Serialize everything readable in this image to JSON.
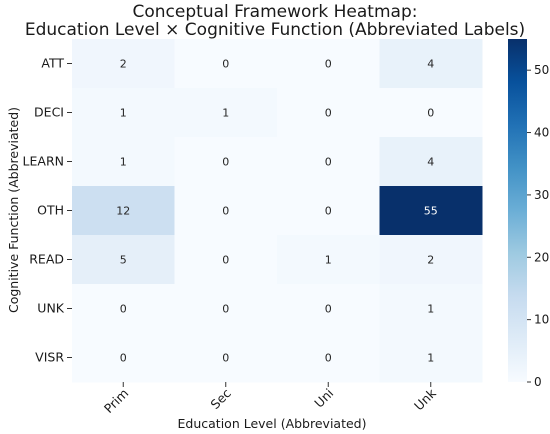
{
  "chart_data": {
    "type": "heatmap",
    "title_line1": "Conceptual Framework Heatmap:",
    "title_line2": "Education Level × Cognitive Function (Abbreviated Labels)",
    "xlabel": "Education Level (Abbreviated)",
    "ylabel": "Cognitive Function (Abbreviated)",
    "x_categories": [
      "Prim",
      "Sec",
      "Uni",
      "Unk"
    ],
    "y_categories": [
      "ATT",
      "DECI",
      "LEARN",
      "OTH",
      "READ",
      "UNK",
      "VISR"
    ],
    "values": [
      [
        2,
        0,
        0,
        4
      ],
      [
        1,
        1,
        0,
        0
      ],
      [
        1,
        0,
        0,
        4
      ],
      [
        12,
        0,
        0,
        55
      ],
      [
        5,
        0,
        1,
        2
      ],
      [
        0,
        0,
        0,
        1
      ],
      [
        0,
        0,
        0,
        1
      ]
    ],
    "colormap": "Blues",
    "color_range": [
      0,
      55
    ],
    "colorbar_ticks": [
      0,
      10,
      20,
      30,
      40,
      50
    ],
    "colorbar_ticks_text": [
      "0",
      "10",
      "20",
      "30",
      "40",
      "50"
    ],
    "colors": {
      "low": "#f7fbff",
      "high": "#08306b"
    }
  }
}
